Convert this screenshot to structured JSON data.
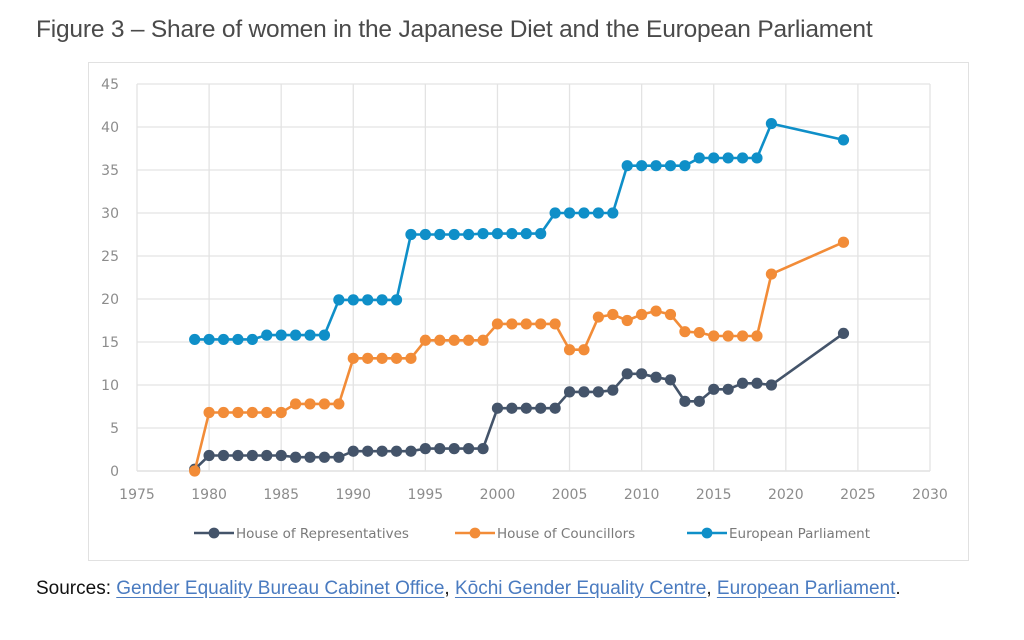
{
  "figure_title": "Figure 3 – Share of women in the Japanese Diet and the European Parliament",
  "sources": {
    "prefix": "Sources: ",
    "links": [
      "Gender Equality Bureau Cabinet Office",
      "Kōchi Gender Equality Centre",
      "European Parliament"
    ],
    "sep1": ", ",
    "sep2": ", ",
    "suffix": "."
  },
  "colors": {
    "house_of_representatives": "#44546a",
    "house_of_councillors": "#f28c38",
    "european_parliament": "#0f8fc8",
    "grid": "#e3e3e3"
  },
  "chart_data": {
    "type": "line",
    "title": "Figure 3 – Share of women in the Japanese Diet and the European Parliament",
    "xlabel": "",
    "ylabel": "",
    "xlim": [
      1975,
      2030
    ],
    "ylim": [
      0,
      45
    ],
    "x_ticks": [
      "1975",
      "1980",
      "1985",
      "1990",
      "1995",
      "2000",
      "2005",
      "2010",
      "2015",
      "2020",
      "2025",
      "2030"
    ],
    "y_ticks": [
      "0",
      "5",
      "10",
      "15",
      "20",
      "25",
      "30",
      "35",
      "40",
      "45"
    ],
    "grid": true,
    "legend_position": "bottom",
    "x": [
      1979,
      1980,
      1981,
      1982,
      1983,
      1984,
      1985,
      1986,
      1987,
      1988,
      1989,
      1990,
      1991,
      1992,
      1993,
      1994,
      1995,
      1996,
      1997,
      1998,
      1999,
      2000,
      2001,
      2002,
      2003,
      2004,
      2005,
      2006,
      2007,
      2008,
      2009,
      2010,
      2011,
      2012,
      2013,
      2014,
      2015,
      2016,
      2017,
      2018,
      2019,
      2024
    ],
    "series": [
      {
        "name": "House of Representatives",
        "values": [
          0.2,
          1.8,
          1.8,
          1.8,
          1.8,
          1.8,
          1.8,
          1.6,
          1.6,
          1.6,
          1.6,
          2.3,
          2.3,
          2.3,
          2.3,
          2.3,
          2.6,
          2.6,
          2.6,
          2.6,
          2.6,
          7.3,
          7.3,
          7.3,
          7.3,
          7.3,
          9.2,
          9.2,
          9.2,
          9.4,
          11.3,
          11.3,
          10.9,
          10.6,
          8.1,
          8.1,
          9.5,
          9.5,
          10.2,
          10.2,
          10.0,
          16.0
        ]
      },
      {
        "name": "House of Councillors",
        "values": [
          0.0,
          6.8,
          6.8,
          6.8,
          6.8,
          6.8,
          6.8,
          7.8,
          7.8,
          7.8,
          7.8,
          13.1,
          13.1,
          13.1,
          13.1,
          13.1,
          15.2,
          15.2,
          15.2,
          15.2,
          15.2,
          17.1,
          17.1,
          17.1,
          17.1,
          17.1,
          14.1,
          14.1,
          17.9,
          18.2,
          17.5,
          18.2,
          18.6,
          18.2,
          16.2,
          16.1,
          15.7,
          15.7,
          15.7,
          15.7,
          22.9,
          26.6
        ]
      },
      {
        "name": "European Parliament",
        "values": [
          15.3,
          15.3,
          15.3,
          15.3,
          15.3,
          15.8,
          15.8,
          15.8,
          15.8,
          15.8,
          19.9,
          19.9,
          19.9,
          19.9,
          19.9,
          27.5,
          27.5,
          27.5,
          27.5,
          27.5,
          27.6,
          27.6,
          27.6,
          27.6,
          27.6,
          30.0,
          30.0,
          30.0,
          30.0,
          30.0,
          35.5,
          35.5,
          35.5,
          35.5,
          35.5,
          36.4,
          36.4,
          36.4,
          36.4,
          36.4,
          40.4,
          38.5
        ]
      }
    ]
  }
}
